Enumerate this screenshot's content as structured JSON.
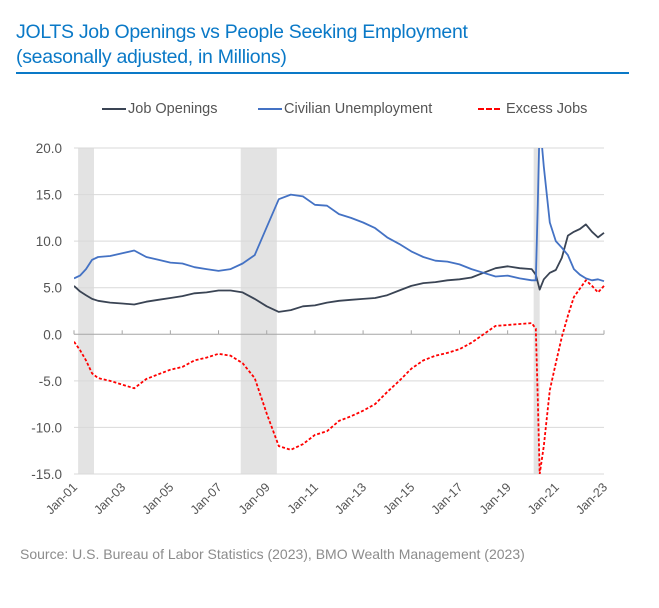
{
  "header": {
    "title_line1": "JOLTS Job Openings vs People Seeking Employment",
    "title_line2": "(seasonally adjusted, in Millions)"
  },
  "footer": {
    "source": "Source: U.S. Bureau of Labor Statistics (2023), BMO Wealth Management (2023)"
  },
  "chart_data": {
    "type": "line",
    "title": "JOLTS Job Openings vs People Seeking Employment (seasonally adjusted, in Millions)",
    "xlabel": "",
    "ylabel": "",
    "xlim": [
      2001.0,
      2023.0
    ],
    "ylim": [
      -15.0,
      20.0
    ],
    "yticks": [
      20.0,
      15.0,
      10.0,
      5.0,
      0.0,
      -5.0,
      -10.0,
      -15.0
    ],
    "ytick_labels": [
      "20.0",
      "15.0",
      "10.0",
      "5.0",
      "0.0",
      "-5.0",
      "-10.0",
      "-15.0"
    ],
    "xticks": [
      2001,
      2003,
      2005,
      2007,
      2009,
      2011,
      2013,
      2015,
      2017,
      2019,
      2021,
      2023
    ],
    "xtick_labels": [
      "Jan-01",
      "Jan-03",
      "Jan-05",
      "Jan-07",
      "Jan-09",
      "Jan-11",
      "Jan-13",
      "Jan-15",
      "Jan-17",
      "Jan-19",
      "Jan-21",
      "Jan-23"
    ],
    "grid": "horizontal",
    "legend_position": "top",
    "recession_shading": [
      {
        "start": 2001.17,
        "end": 2001.83
      },
      {
        "start": 2007.92,
        "end": 2009.42
      },
      {
        "start": 2020.08,
        "end": 2020.33
      }
    ],
    "colors": {
      "job_openings": "#3a4454",
      "civilian_unemployment": "#4472c4",
      "excess_jobs": "#ff0000",
      "recession": "#e3e3e3",
      "grid": "#d9d9d9"
    },
    "series": [
      {
        "name": "Job Openings",
        "style": "solid",
        "x": [
          2001.0,
          2001.25,
          2001.5,
          2001.75,
          2002.0,
          2002.5,
          2003.0,
          2003.5,
          2004.0,
          2004.5,
          2005.0,
          2005.5,
          2006.0,
          2006.5,
          2007.0,
          2007.5,
          2008.0,
          2008.5,
          2009.0,
          2009.5,
          2010.0,
          2010.5,
          2011.0,
          2011.5,
          2012.0,
          2012.5,
          2013.0,
          2013.5,
          2014.0,
          2014.5,
          2015.0,
          2015.5,
          2016.0,
          2016.5,
          2017.0,
          2017.5,
          2018.0,
          2018.5,
          2019.0,
          2019.5,
          2020.0,
          2020.17,
          2020.33,
          2020.5,
          2020.75,
          2021.0,
          2021.25,
          2021.5,
          2021.75,
          2022.0,
          2022.25,
          2022.5,
          2022.75,
          2023.0
        ],
        "values": [
          5.2,
          4.6,
          4.2,
          3.8,
          3.6,
          3.4,
          3.3,
          3.2,
          3.5,
          3.7,
          3.9,
          4.1,
          4.4,
          4.5,
          4.7,
          4.7,
          4.5,
          3.8,
          3.0,
          2.4,
          2.6,
          3.0,
          3.1,
          3.4,
          3.6,
          3.7,
          3.8,
          3.9,
          4.2,
          4.7,
          5.2,
          5.5,
          5.6,
          5.8,
          5.9,
          6.1,
          6.6,
          7.1,
          7.3,
          7.1,
          7.0,
          6.4,
          4.8,
          5.9,
          6.6,
          6.9,
          8.2,
          10.6,
          11.0,
          11.3,
          11.8,
          11.0,
          10.4,
          10.9
        ]
      },
      {
        "name": "Civilian Unemployment",
        "style": "solid",
        "x": [
          2001.0,
          2001.25,
          2001.5,
          2001.75,
          2002.0,
          2002.5,
          2003.0,
          2003.5,
          2004.0,
          2004.5,
          2005.0,
          2005.5,
          2006.0,
          2006.5,
          2007.0,
          2007.5,
          2008.0,
          2008.5,
          2009.0,
          2009.5,
          2010.0,
          2010.5,
          2011.0,
          2011.5,
          2012.0,
          2012.5,
          2013.0,
          2013.5,
          2014.0,
          2014.5,
          2015.0,
          2015.5,
          2016.0,
          2016.5,
          2017.0,
          2017.5,
          2018.0,
          2018.5,
          2019.0,
          2019.5,
          2020.0,
          2020.17,
          2020.25,
          2020.33,
          2020.5,
          2020.75,
          2021.0,
          2021.25,
          2021.5,
          2021.75,
          2022.0,
          2022.25,
          2022.5,
          2022.75,
          2023.0
        ],
        "values": [
          6.0,
          6.3,
          7.0,
          8.0,
          8.3,
          8.4,
          8.7,
          9.0,
          8.3,
          8.0,
          7.7,
          7.6,
          7.2,
          7.0,
          6.8,
          7.0,
          7.6,
          8.5,
          11.5,
          14.5,
          15.0,
          14.8,
          13.9,
          13.8,
          12.9,
          12.5,
          12.0,
          11.4,
          10.4,
          9.7,
          8.9,
          8.3,
          7.9,
          7.8,
          7.5,
          7.0,
          6.6,
          6.2,
          6.3,
          6.0,
          5.8,
          5.8,
          14.0,
          23.0,
          18.0,
          12.0,
          10.0,
          9.3,
          8.5,
          7.0,
          6.4,
          6.0,
          5.8,
          5.9,
          5.7
        ]
      },
      {
        "name": "Excess Jobs",
        "style": "dashed",
        "x": [
          2001.0,
          2001.25,
          2001.5,
          2001.75,
          2002.0,
          2002.5,
          2003.0,
          2003.5,
          2004.0,
          2004.5,
          2005.0,
          2005.5,
          2006.0,
          2006.5,
          2007.0,
          2007.5,
          2008.0,
          2008.5,
          2009.0,
          2009.5,
          2010.0,
          2010.5,
          2011.0,
          2011.5,
          2012.0,
          2012.5,
          2013.0,
          2013.5,
          2014.0,
          2014.5,
          2015.0,
          2015.5,
          2016.0,
          2016.5,
          2017.0,
          2017.5,
          2018.0,
          2018.5,
          2019.0,
          2019.5,
          2020.0,
          2020.17,
          2020.25,
          2020.33,
          2020.5,
          2020.75,
          2021.0,
          2021.25,
          2021.5,
          2021.75,
          2022.0,
          2022.25,
          2022.5,
          2022.75,
          2023.0
        ],
        "values": [
          -0.8,
          -1.7,
          -2.8,
          -4.2,
          -4.7,
          -5.0,
          -5.4,
          -5.8,
          -4.8,
          -4.3,
          -3.8,
          -3.5,
          -2.8,
          -2.5,
          -2.1,
          -2.3,
          -3.1,
          -4.7,
          -8.5,
          -12.0,
          -12.4,
          -11.8,
          -10.8,
          -10.4,
          -9.3,
          -8.8,
          -8.2,
          -7.5,
          -6.2,
          -5.0,
          -3.7,
          -2.8,
          -2.3,
          -2.0,
          -1.6,
          -0.9,
          0.0,
          0.9,
          1.0,
          1.1,
          1.2,
          0.6,
          -7.0,
          -15.0,
          -12.0,
          -6.0,
          -3.1,
          -0.3,
          2.0,
          4.0,
          4.9,
          5.8,
          5.2,
          4.5,
          5.2
        ]
      }
    ]
  }
}
